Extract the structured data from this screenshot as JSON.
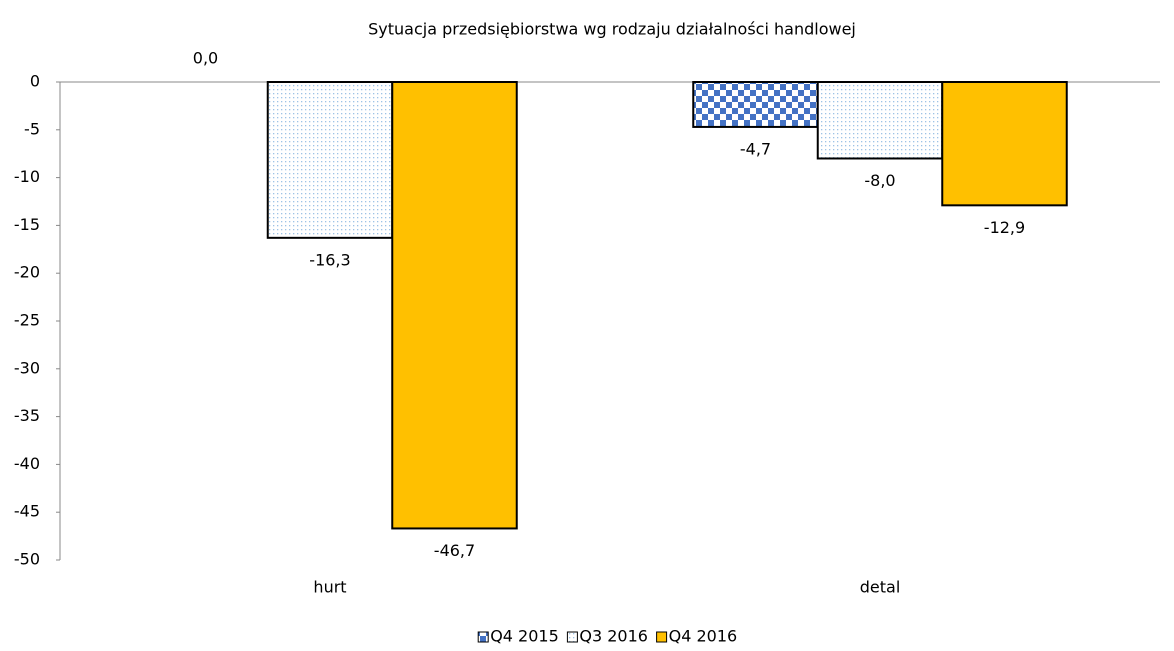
{
  "chart_data": {
    "type": "bar",
    "title": "Sytuacja przedsiębiorstwa wg rodzaju działalności handlowej",
    "categories": [
      "hurt",
      "detal"
    ],
    "series": [
      {
        "name": "Q4 2015",
        "color": "#4472c4",
        "pattern": "checker",
        "values": [
          0.0,
          -4.7
        ],
        "value_labels": [
          "0,0",
          "-4,7"
        ]
      },
      {
        "name": "Q3 2016",
        "color": "#9dc3e6",
        "pattern": "dots",
        "values": [
          -16.3,
          -8.0
        ],
        "value_labels": [
          "-16,3",
          "-8,0"
        ]
      },
      {
        "name": "Q4 2016",
        "color": "#ffc000",
        "pattern": "solid",
        "values": [
          -46.7,
          -12.9
        ],
        "value_labels": [
          "-46,7",
          "-12,9"
        ]
      }
    ],
    "ylim": [
      -50,
      0
    ],
    "yticks": [
      0,
      -5,
      -10,
      -15,
      -20,
      -25,
      -30,
      -35,
      -40,
      -45,
      -50
    ],
    "grid": false,
    "legend": "bottom"
  }
}
